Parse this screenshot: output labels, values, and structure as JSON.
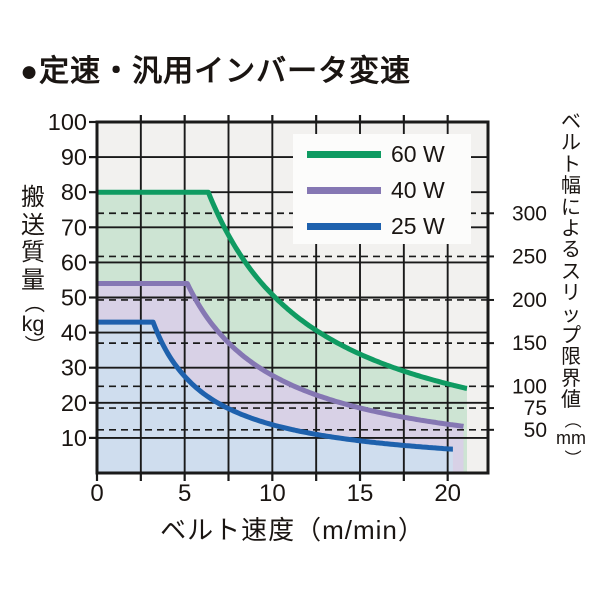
{
  "title": "●定速・汎用インバータ変速",
  "chart_data": {
    "type": "area",
    "title": "定速・汎用インバータ変速",
    "xlabel": "ベルト速度（m/min）",
    "ylabel": "搬送質量（kg）",
    "xlim": [
      0,
      22.3
    ],
    "ylim": [
      0,
      100
    ],
    "x_major_tick_labels": [
      "0",
      "5",
      "10",
      "15",
      "20"
    ],
    "x_major_ticks": [
      0,
      5,
      10,
      15,
      20
    ],
    "x_minor_step": 2.5,
    "y_ticks": [
      10,
      20,
      30,
      40,
      50,
      60,
      70,
      80,
      90,
      100
    ],
    "grid": "on",
    "legend_position": "top-right",
    "series": [
      {
        "name": "60 W",
        "color": "#0f9b62",
        "fill": "#cde4d3",
        "flat_value": 80,
        "flat_until_x": 6.35,
        "end_x": 21.1,
        "end_value": 24.1,
        "points": {
          "x": [
            0,
            2,
            4,
            6.35,
            8,
            10,
            12,
            14,
            16,
            18,
            20,
            21.1
          ],
          "y": [
            80,
            80,
            80,
            80,
            63.5,
            50.8,
            42.3,
            36.3,
            31.8,
            28.2,
            25.4,
            24.1
          ]
        }
      },
      {
        "name": "40 W",
        "color": "#8577b3",
        "fill": "#d8d1e6",
        "flat_value": 54,
        "flat_until_x": 5.15,
        "end_x": 20.9,
        "end_value": 13.3,
        "points": {
          "x": [
            0,
            2,
            4,
            5.15,
            6,
            8,
            10,
            12,
            14,
            16,
            18,
            20,
            20.9
          ],
          "y": [
            54,
            54,
            54,
            54,
            46.4,
            34.8,
            27.8,
            23.2,
            19.9,
            17.4,
            15.5,
            13.9,
            13.3
          ]
        }
      },
      {
        "name": "25 W",
        "color": "#1e61ad",
        "fill": "#cfddee",
        "flat_value": 43,
        "flat_until_x": 3.2,
        "end_x": 20.3,
        "end_value": 6.8,
        "points": {
          "x": [
            0,
            1,
            2,
            3.2,
            4,
            6,
            8,
            10,
            12,
            14,
            16,
            18,
            20,
            20.3
          ],
          "y": [
            43,
            43,
            43,
            43,
            34.4,
            22.9,
            17.2,
            13.8,
            11.5,
            9.8,
            8.6,
            7.6,
            6.9,
            6.8
          ]
        }
      }
    ],
    "right_axis": {
      "label": "ベルト幅によるスリップ限界値（mm）",
      "line_style": "dashed",
      "entries": [
        {
          "label": "300",
          "kg": 74.0
        },
        {
          "label": "250",
          "kg": 61.7
        },
        {
          "label": "200",
          "kg": 49.3
        },
        {
          "label": "150",
          "kg": 37.0
        },
        {
          "label": "100",
          "kg": 24.7
        },
        {
          "label": "75",
          "kg": 18.5
        },
        {
          "label": "50",
          "kg": 12.3
        }
      ]
    }
  },
  "colors": {
    "grid": "#1a1a1a",
    "text": "#1a1512",
    "plot_bg": "#f2f1ef",
    "page_bg": "#ffffff",
    "legend_bg": "#fcfcfb"
  }
}
